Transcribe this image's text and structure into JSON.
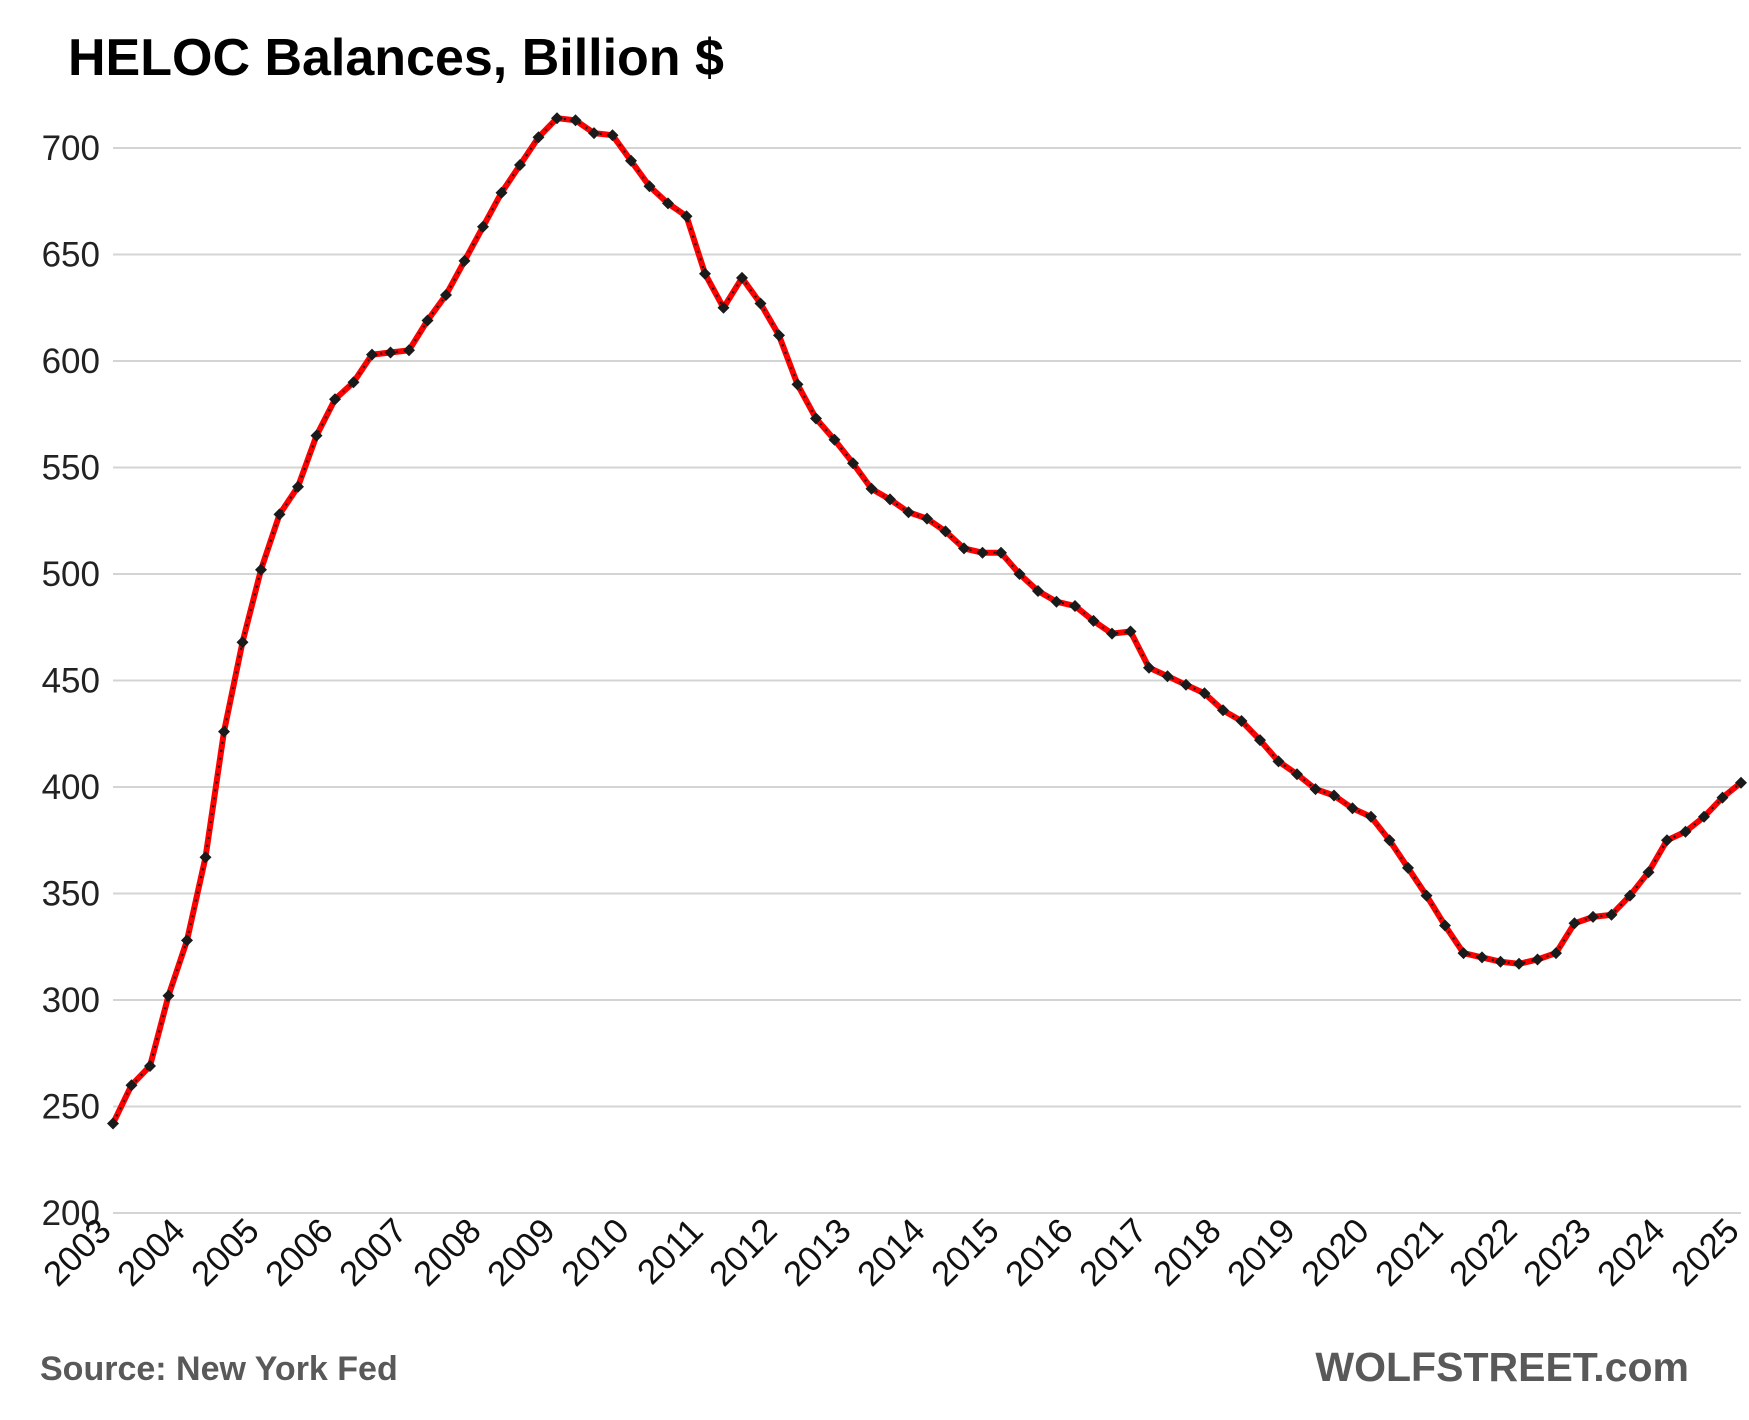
{
  "chart_data": {
    "type": "line",
    "title": "HELOC Balances, Billion $",
    "xlabel": "",
    "ylabel": "",
    "ylim": [
      200,
      700
    ],
    "yticks": [
      200,
      250,
      300,
      350,
      400,
      450,
      500,
      550,
      600,
      650,
      700
    ],
    "xticks": [
      "2003",
      "2004",
      "2005",
      "2006",
      "2007",
      "2008",
      "2009",
      "2010",
      "2011",
      "2012",
      "2013",
      "2014",
      "2015",
      "2016",
      "2017",
      "2018",
      "2019",
      "2020",
      "2021",
      "2022",
      "2023",
      "2024",
      "2025"
    ],
    "grid": "horizontal",
    "legend": "none",
    "colors": {
      "line": "#ff0000",
      "marker": "#1a1a1a",
      "grid": "#d4d4d4"
    },
    "series": [
      {
        "x": [
          "2003-Q1",
          "2003-Q2",
          "2003-Q3",
          "2003-Q4",
          "2004-Q1",
          "2004-Q2",
          "2004-Q3",
          "2004-Q4",
          "2005-Q1",
          "2005-Q2",
          "2005-Q3",
          "2005-Q4",
          "2006-Q1",
          "2006-Q2",
          "2006-Q3",
          "2006-Q4",
          "2007-Q1",
          "2007-Q2",
          "2007-Q3",
          "2007-Q4",
          "2008-Q1",
          "2008-Q2",
          "2008-Q3",
          "2008-Q4",
          "2009-Q1",
          "2009-Q2",
          "2009-Q3",
          "2009-Q4",
          "2010-Q1",
          "2010-Q2",
          "2010-Q3",
          "2010-Q4",
          "2011-Q1",
          "2011-Q2",
          "2011-Q3",
          "2011-Q4",
          "2012-Q1",
          "2012-Q2",
          "2012-Q3",
          "2012-Q4",
          "2013-Q1",
          "2013-Q2",
          "2013-Q3",
          "2013-Q4",
          "2014-Q1",
          "2014-Q2",
          "2014-Q3",
          "2014-Q4",
          "2015-Q1",
          "2015-Q2",
          "2015-Q3",
          "2015-Q4",
          "2016-Q1",
          "2016-Q2",
          "2016-Q3",
          "2016-Q4",
          "2017-Q1",
          "2017-Q2",
          "2017-Q3",
          "2017-Q4",
          "2018-Q1",
          "2018-Q2",
          "2018-Q3",
          "2018-Q4",
          "2019-Q1",
          "2019-Q2",
          "2019-Q3",
          "2019-Q4",
          "2020-Q1",
          "2020-Q2",
          "2020-Q3",
          "2020-Q4",
          "2021-Q1",
          "2021-Q2",
          "2021-Q3",
          "2021-Q4",
          "2022-Q1",
          "2022-Q2",
          "2022-Q3",
          "2022-Q4",
          "2023-Q1",
          "2023-Q2",
          "2023-Q3",
          "2023-Q4",
          "2024-Q1",
          "2024-Q2",
          "2024-Q3",
          "2024-Q4",
          "2025-Q1"
        ],
        "values": [
          242,
          260,
          269,
          302,
          328,
          367,
          426,
          468,
          502,
          528,
          541,
          565,
          582,
          590,
          603,
          604,
          605,
          619,
          631,
          647,
          663,
          679,
          692,
          705,
          714,
          713,
          707,
          706,
          694,
          682,
          674,
          668,
          641,
          625,
          639,
          627,
          612,
          589,
          573,
          563,
          552,
          540,
          535,
          529,
          526,
          520,
          512,
          510,
          510,
          500,
          492,
          487,
          485,
          478,
          472,
          473,
          456,
          452,
          448,
          444,
          436,
          431,
          422,
          412,
          406,
          399,
          396,
          390,
          386,
          375,
          362,
          349,
          335,
          322,
          320,
          318,
          317,
          319,
          322,
          336,
          339,
          340,
          349,
          360,
          375,
          379,
          386,
          395,
          402
        ]
      }
    ]
  },
  "footer": {
    "source": "Source: New York Fed",
    "brand": "WOLFSTREET.com"
  }
}
